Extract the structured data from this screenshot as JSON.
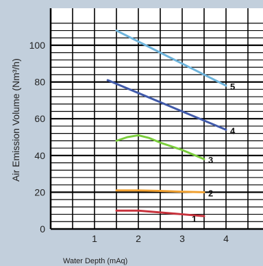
{
  "chart_data": {
    "type": "line",
    "title": "",
    "xlabel": "Water Depth (mAq)",
    "ylabel": "Air Emission Volume (Nm³/h)",
    "xlim": [
      0,
      4.5
    ],
    "ylim": [
      0,
      115
    ],
    "x_ticks": [
      1,
      2,
      3,
      4
    ],
    "y_ticks": [
      0,
      20,
      40,
      60,
      80,
      100
    ],
    "grid": true,
    "series": [
      {
        "name": "1",
        "color": "#c8323c",
        "x": [
          1.5,
          2.0,
          2.5,
          3.0,
          3.5
        ],
        "y": [
          10,
          10,
          9,
          8,
          7
        ]
      },
      {
        "name": "2",
        "color": "#f0a030",
        "x": [
          1.5,
          2.0,
          2.5,
          3.0,
          3.5
        ],
        "y": [
          21,
          21,
          20.7,
          20.3,
          20
        ]
      },
      {
        "name": "3",
        "color": "#7acd3c",
        "x": [
          1.5,
          1.75,
          2.0,
          2.25,
          2.5,
          3.0,
          3.5
        ],
        "y": [
          48,
          50,
          51,
          49.5,
          47,
          43,
          38
        ]
      },
      {
        "name": "4",
        "color": "#405aaa",
        "x": [
          1.3,
          2.0,
          3.0,
          4.0
        ],
        "y": [
          81,
          74,
          64,
          54
        ]
      },
      {
        "name": "5",
        "color": "#6eb4dc",
        "x": [
          1.5,
          2.0,
          3.0,
          4.0
        ],
        "y": [
          108,
          102,
          90,
          78
        ]
      }
    ]
  }
}
